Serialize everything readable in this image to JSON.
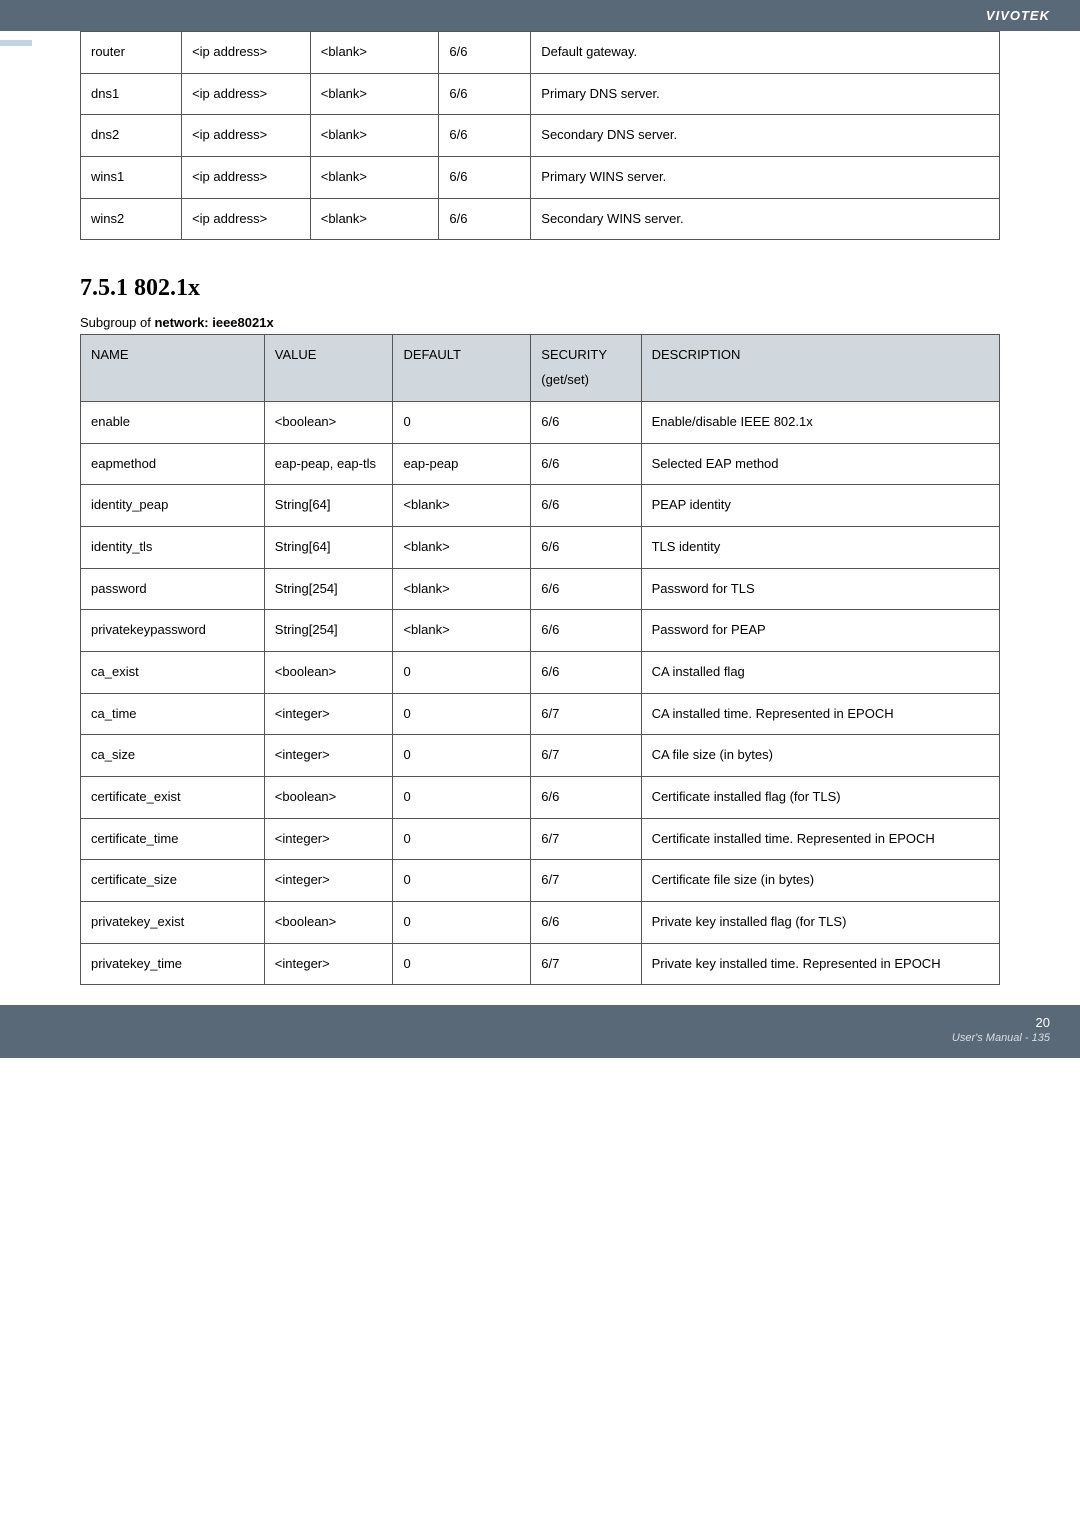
{
  "header": {
    "brand": "VIVOTEK"
  },
  "table1": {
    "rows": [
      {
        "name": "router",
        "value": "<ip address>",
        "default": "<blank>",
        "sec": "6/6",
        "desc": "Default gateway."
      },
      {
        "name": "dns1",
        "value": "<ip address>",
        "default": "<blank>",
        "sec": "6/6",
        "desc": "Primary DNS server."
      },
      {
        "name": "dns2",
        "value": "<ip address>",
        "default": "<blank>",
        "sec": "6/6",
        "desc": "Secondary DNS server."
      },
      {
        "name": "wins1",
        "value": "<ip address>",
        "default": "<blank>",
        "sec": "6/6",
        "desc": "Primary WINS server."
      },
      {
        "name": "wins2",
        "value": "<ip address>",
        "default": "<blank>",
        "sec": "6/6",
        "desc": "Secondary WINS server."
      }
    ]
  },
  "section": {
    "heading": "7.5.1 802.1x",
    "subgroup_prefix": "Subgroup of ",
    "subgroup_bold": "network: ieee8021x"
  },
  "table2": {
    "headers": {
      "c1": "NAME",
      "c2": "VALUE",
      "c3": "DEFAULT",
      "c4": "SECURITY (get/set)",
      "c5": "DESCRIPTION"
    },
    "rows": [
      {
        "name": "enable",
        "value": "<boolean>",
        "default": "0",
        "sec": "6/6",
        "desc": "Enable/disable IEEE 802.1x"
      },
      {
        "name": "eapmethod",
        "value": "eap-peap, eap-tls",
        "default": "eap-peap",
        "sec": "6/6",
        "desc": "Selected EAP method"
      },
      {
        "name": "identity_peap",
        "value": "String[64]",
        "default": "<blank>",
        "sec": "6/6",
        "desc": "PEAP identity"
      },
      {
        "name": "identity_tls",
        "value": "String[64]",
        "default": "<blank>",
        "sec": "6/6",
        "desc": "TLS identity"
      },
      {
        "name": "password",
        "value": "String[254]",
        "default": "<blank>",
        "sec": "6/6",
        "desc": "Password for TLS"
      },
      {
        "name": "privatekeypassword",
        "value": "String[254]",
        "default": "<blank>",
        "sec": "6/6",
        "desc": "Password for PEAP"
      },
      {
        "name": "ca_exist",
        "value": "<boolean>",
        "default": "0",
        "sec": "6/6",
        "desc": "CA installed flag"
      },
      {
        "name": "ca_time",
        "value": "<integer>",
        "default": "0",
        "sec": "6/7",
        "desc": "CA installed time. Represented in EPOCH"
      },
      {
        "name": "ca_size",
        "value": "<integer>",
        "default": "0",
        "sec": "6/7",
        "desc": "CA file size (in bytes)"
      },
      {
        "name": "certificate_exist",
        "value": "<boolean>",
        "default": "0",
        "sec": "6/6",
        "desc": "Certificate installed flag (for TLS)"
      },
      {
        "name": "certificate_time",
        "value": "<integer>",
        "default": "0",
        "sec": "6/7",
        "desc": "Certificate installed time. Represented in EPOCH"
      },
      {
        "name": "certificate_size",
        "value": "<integer>",
        "default": "0",
        "sec": "6/7",
        "desc": "Certificate file size (in bytes)"
      },
      {
        "name": "privatekey_exist",
        "value": "<boolean>",
        "default": "0",
        "sec": "6/6",
        "desc": "Private key installed flag (for TLS)"
      },
      {
        "name": "privatekey_time",
        "value": "<integer>",
        "default": "0",
        "sec": "6/7",
        "desc": "Private key installed time. Represented in EPOCH"
      }
    ]
  },
  "footer": {
    "page_inner": "20",
    "manual_label": "User's Manual - 135"
  }
}
